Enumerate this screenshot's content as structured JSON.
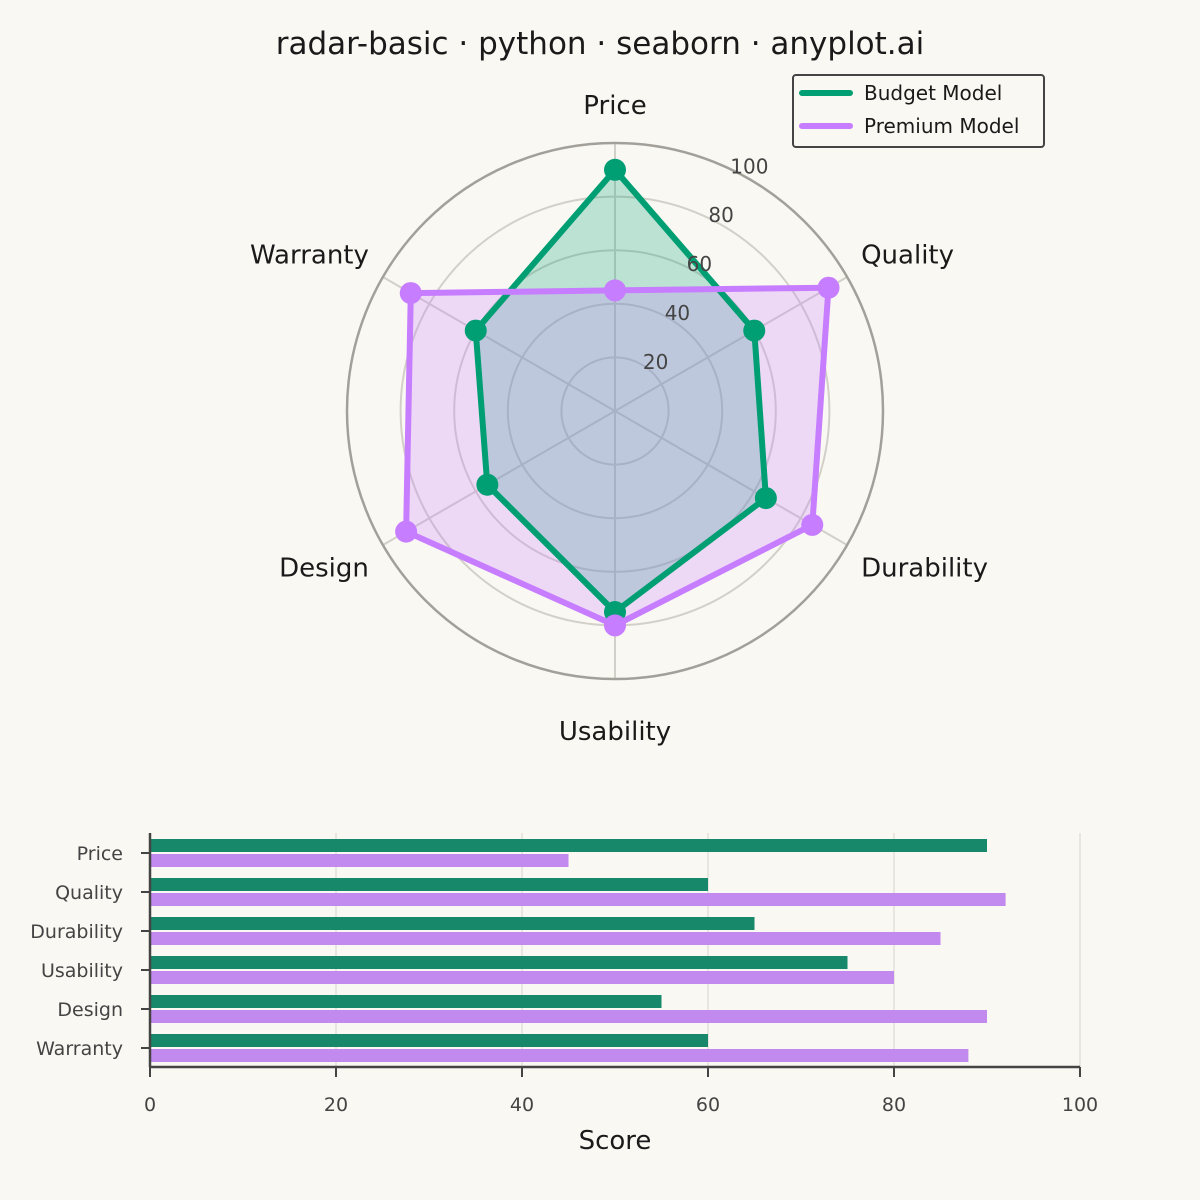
{
  "title": "radar-basic · python · seaborn · anyplot.ai",
  "colors": {
    "background": "#FAF8F2",
    "budget": "#009E73",
    "premium": "#C77DFF",
    "budget_bar": "#17886A",
    "premium_bar": "#C289EE"
  },
  "chart_data": [
    {
      "type": "radar",
      "categories": [
        "Price",
        "Quality",
        "Durability",
        "Usability",
        "Design",
        "Warranty"
      ],
      "series": [
        {
          "name": "Budget Model",
          "values": [
            90,
            60,
            65,
            75,
            55,
            60
          ]
        },
        {
          "name": "Premium Model",
          "values": [
            45,
            92,
            85,
            80,
            90,
            88
          ]
        }
      ],
      "rlim": [
        0,
        100
      ],
      "rticks": [
        "20",
        "40",
        "60",
        "80",
        "100"
      ],
      "legend": "top-right",
      "grid": true
    },
    {
      "type": "bar",
      "orientation": "horizontal",
      "categories": [
        "Price",
        "Quality",
        "Durability",
        "Usability",
        "Design",
        "Warranty"
      ],
      "series": [
        {
          "name": "Budget Model",
          "values": [
            90,
            60,
            65,
            75,
            55,
            60
          ]
        },
        {
          "name": "Premium Model",
          "values": [
            45,
            92,
            85,
            80,
            90,
            88
          ]
        }
      ],
      "xlabel": "Score",
      "xlim": [
        0,
        100
      ],
      "xticks": [
        "0",
        "20",
        "40",
        "60",
        "80",
        "100"
      ],
      "grid": true
    }
  ]
}
